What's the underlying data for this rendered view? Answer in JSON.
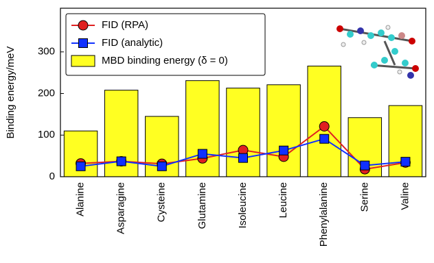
{
  "chart_data": {
    "type": "bar",
    "y_label": "Binding energy/meV",
    "categories": [
      "Alanine",
      "Asparagine",
      "Cysteine",
      "Glutamine",
      "Isoleucine",
      "Leucine",
      "Phenylalanine",
      "Serine",
      "Valine"
    ],
    "series": [
      {
        "name": "FID (RPA)",
        "type": "line",
        "marker": "circle",
        "color": "#e02020",
        "values": [
          32,
          37,
          31,
          44,
          64,
          48,
          121,
          18,
          34
        ]
      },
      {
        "name": "FID (analytic)",
        "type": "line",
        "marker": "square",
        "color": "#1030ff",
        "values": [
          25,
          37,
          25,
          55,
          45,
          63,
          91,
          27,
          36
        ]
      },
      {
        "name": "MBD binding energy (δ = 0)",
        "type": "bar",
        "color": "#ffff22",
        "values": [
          110,
          208,
          145,
          231,
          213,
          221,
          266,
          142,
          171
        ]
      }
    ],
    "ylim": [
      0,
      405
    ],
    "yticks": [
      0,
      100,
      200,
      300
    ],
    "grid": false,
    "legend": "upper left"
  }
}
